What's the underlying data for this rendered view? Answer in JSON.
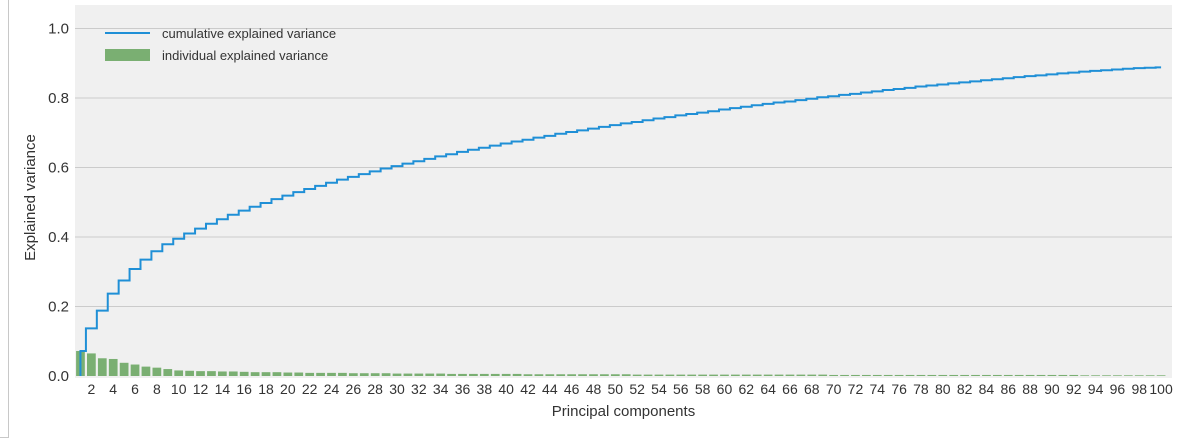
{
  "chart_data": {
    "type": "bar",
    "title": "",
    "xlabel": "Principal components",
    "ylabel": "Explained variance",
    "xlim": [
      0.5,
      101
    ],
    "ylim": [
      0,
      1.0
    ],
    "yticks": [
      "0.0",
      "0.2",
      "0.4",
      "0.6",
      "0.8",
      "1.0"
    ],
    "xtick_step": 2,
    "grid": "horizontal",
    "legend_position": "top-left",
    "series": [
      {
        "name": "cumulative explained variance",
        "kind": "step",
        "color": "#1f8fd6",
        "values": [
          0.072,
          0.137,
          0.188,
          0.237,
          0.275,
          0.308,
          0.335,
          0.359,
          0.379,
          0.395,
          0.41,
          0.424,
          0.438,
          0.451,
          0.464,
          0.476,
          0.487,
          0.498,
          0.509,
          0.519,
          0.529,
          0.538,
          0.547,
          0.556,
          0.565,
          0.573,
          0.581,
          0.589,
          0.597,
          0.604,
          0.611,
          0.618,
          0.625,
          0.632,
          0.638,
          0.645,
          0.651,
          0.657,
          0.663,
          0.669,
          0.675,
          0.68,
          0.686,
          0.691,
          0.697,
          0.702,
          0.707,
          0.712,
          0.717,
          0.722,
          0.727,
          0.731,
          0.736,
          0.741,
          0.745,
          0.75,
          0.754,
          0.758,
          0.762,
          0.767,
          0.771,
          0.775,
          0.779,
          0.783,
          0.787,
          0.79,
          0.794,
          0.798,
          0.802,
          0.805,
          0.809,
          0.812,
          0.816,
          0.819,
          0.823,
          0.826,
          0.829,
          0.833,
          0.836,
          0.839,
          0.842,
          0.845,
          0.848,
          0.851,
          0.854,
          0.857,
          0.86,
          0.863,
          0.865,
          0.868,
          0.871,
          0.873,
          0.876,
          0.878,
          0.88,
          0.882,
          0.884,
          0.886,
          0.887,
          0.888
        ]
      },
      {
        "name": "individual explained variance",
        "kind": "bar",
        "color": "#7aaf72",
        "values": [
          0.072,
          0.065,
          0.051,
          0.049,
          0.038,
          0.033,
          0.027,
          0.024,
          0.02,
          0.016,
          0.015,
          0.014,
          0.014,
          0.013,
          0.013,
          0.012,
          0.011,
          0.011,
          0.011,
          0.01,
          0.01,
          0.009,
          0.009,
          0.009,
          0.009,
          0.008,
          0.008,
          0.008,
          0.008,
          0.007,
          0.007,
          0.007,
          0.007,
          0.007,
          0.006,
          0.006,
          0.006,
          0.006,
          0.006,
          0.006,
          0.006,
          0.005,
          0.005,
          0.005,
          0.005,
          0.005,
          0.005,
          0.005,
          0.005,
          0.005,
          0.005,
          0.004,
          0.004,
          0.004,
          0.004,
          0.004,
          0.004,
          0.004,
          0.004,
          0.004,
          0.004,
          0.004,
          0.004,
          0.004,
          0.004,
          0.004,
          0.004,
          0.004,
          0.004,
          0.003,
          0.003,
          0.003,
          0.003,
          0.003,
          0.003,
          0.003,
          0.003,
          0.003,
          0.003,
          0.003,
          0.003,
          0.003,
          0.003,
          0.003,
          0.003,
          0.003,
          0.003,
          0.003,
          0.003,
          0.003,
          0.003,
          0.003,
          0.002,
          0.002,
          0.002,
          0.002,
          0.002,
          0.002,
          0.002,
          0.002
        ]
      }
    ]
  },
  "colors": {
    "plot_background": "#f0f0f0",
    "grid": "#cbcbcb"
  }
}
